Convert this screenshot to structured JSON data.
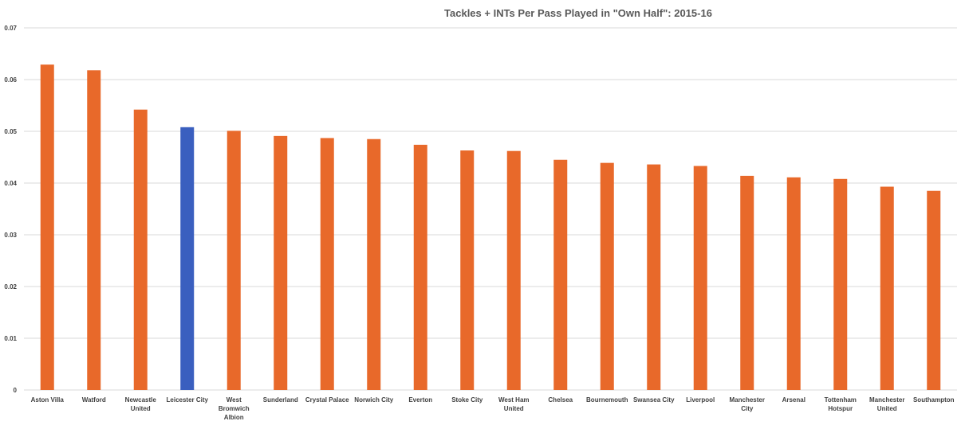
{
  "chart_data": {
    "type": "bar",
    "title": "Tackles + INTs Per Pass Played in \"Own Half\": 2015-16",
    "xlabel": "",
    "ylabel": "",
    "ylim": [
      0,
      0.07
    ],
    "yticks": [
      "0",
      "0.01",
      "0.02",
      "0.03",
      "0.04",
      "0.05",
      "0.06",
      "0.07"
    ],
    "grid": true,
    "categories": [
      [
        "Aston Villa"
      ],
      [
        "Watford"
      ],
      [
        "Newcastle",
        "United"
      ],
      [
        "Leicester City"
      ],
      [
        "West",
        "Bromwich",
        "Albion"
      ],
      [
        "Sunderland"
      ],
      [
        "Crystal Palace"
      ],
      [
        "Norwich City"
      ],
      [
        "Everton"
      ],
      [
        "Stoke City"
      ],
      [
        "West Ham",
        "United"
      ],
      [
        "Chelsea"
      ],
      [
        "Bournemouth"
      ],
      [
        "Swansea City"
      ],
      [
        "Liverpool"
      ],
      [
        "Manchester",
        "City"
      ],
      [
        "Arsenal"
      ],
      [
        "Tottenham",
        "Hotspur"
      ],
      [
        "Manchester",
        "United"
      ],
      [
        "Southampton"
      ]
    ],
    "values": [
      0.0629,
      0.0618,
      0.0542,
      0.0508,
      0.0501,
      0.0491,
      0.0487,
      0.0485,
      0.0474,
      0.0463,
      0.0462,
      0.0445,
      0.0439,
      0.0436,
      0.0433,
      0.0414,
      0.0411,
      0.0408,
      0.0393,
      0.0385
    ],
    "colors": {
      "default": "#e8692a",
      "highlight": "#3a5fbf",
      "highlight_category": "Leicester City"
    }
  }
}
